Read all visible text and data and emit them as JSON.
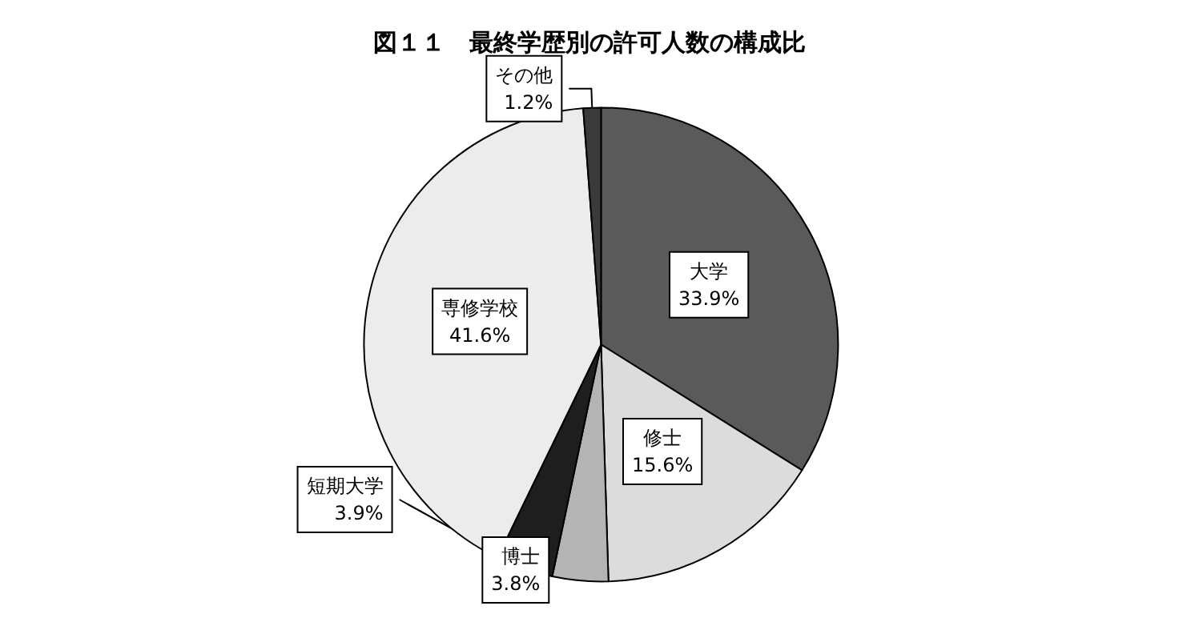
{
  "chart_data": {
    "type": "pie",
    "title": "図１１　最終学歴別の許可人数の構成比",
    "categories": [
      "大学",
      "修士",
      "博士",
      "短期大学",
      "専修学校",
      "その他"
    ],
    "values": [
      33.9,
      15.6,
      3.8,
      3.9,
      41.6,
      1.2
    ],
    "colors": [
      "#5a5a5a",
      "#dcdcdc",
      "#b4b4b4",
      "#1e1e1e",
      "#ececec",
      "#3a3a3a"
    ],
    "value_labels": [
      "33.9%",
      "15.6%",
      "3.8%",
      "3.9%",
      "41.6%",
      "1.2%"
    ],
    "legend": false
  }
}
